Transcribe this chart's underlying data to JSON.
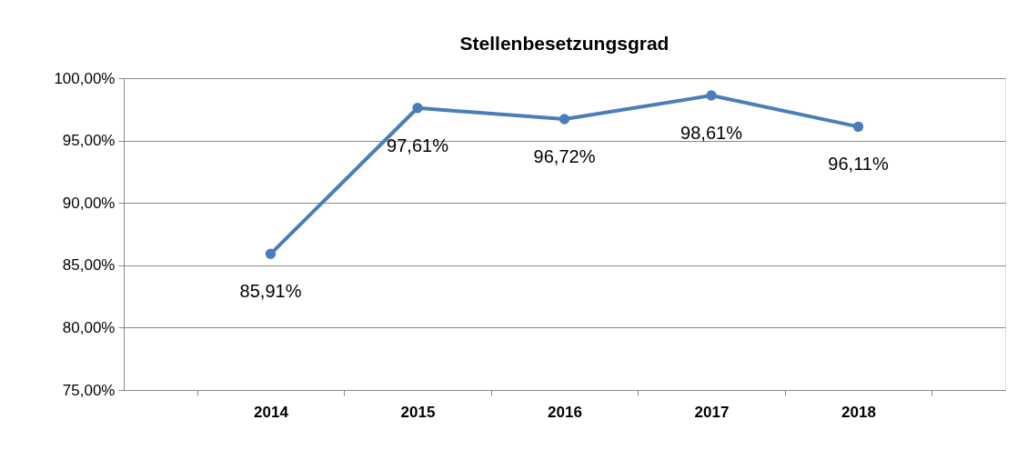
{
  "chart_data": {
    "type": "line",
    "title": "Stellenbesetzungsgrad",
    "categories": [
      "2014",
      "2015",
      "2016",
      "2017",
      "2018"
    ],
    "series": [
      {
        "color": "#4a7ebb",
        "values": [
          85.91,
          97.61,
          96.72,
          98.61,
          96.11
        ],
        "value_labels": [
          "85,91%",
          "97,61%",
          "96,72%",
          "98,61%",
          "96,11%"
        ]
      }
    ],
    "ylim": [
      75,
      100
    ],
    "yticks": [
      {
        "value": 75,
        "label": "75,00%"
      },
      {
        "value": 80,
        "label": "80,00%"
      },
      {
        "value": 85,
        "label": "85,00%"
      },
      {
        "value": 90,
        "label": "90,00%"
      },
      {
        "value": 95,
        "label": "95,00%"
      },
      {
        "value": 100,
        "label": "100,00%"
      }
    ],
    "grid": "y",
    "marker": "circle",
    "line_style": "solid"
  }
}
